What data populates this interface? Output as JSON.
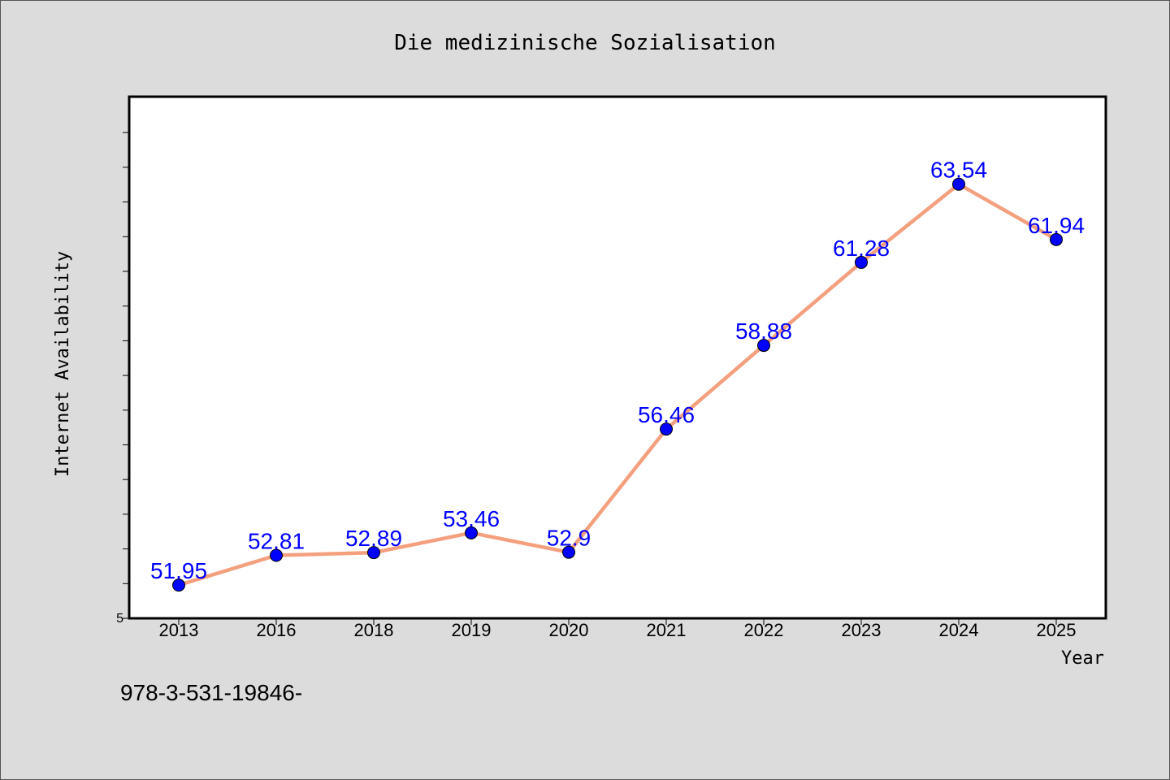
{
  "chart_data": {
    "type": "line",
    "title": "Die medizinische Sozialisation",
    "xlabel": "Year",
    "ylabel": "Internet Availability",
    "categories": [
      "2013",
      "2016",
      "2018",
      "2019",
      "2020",
      "2021",
      "2022",
      "2023",
      "2024",
      "2025"
    ],
    "series": [
      {
        "values": [
          51.95,
          52.81,
          52.89,
          53.46,
          52.9,
          56.46,
          58.88,
          61.28,
          63.54,
          61.94
        ],
        "labels": [
          "51.95",
          "52.81",
          "52.89",
          "53.46",
          "52.9",
          "56.46",
          "58.88",
          "61.28",
          "63.54",
          "61.94"
        ]
      }
    ],
    "ylim": [
      50.99,
      66.07
    ],
    "y_tick_label": "5",
    "grid": false,
    "line_color": "#f4a07e",
    "marker_color": "#0000ff",
    "label_color": "#0000ff"
  },
  "footer_text": "978-3-531-19846-"
}
